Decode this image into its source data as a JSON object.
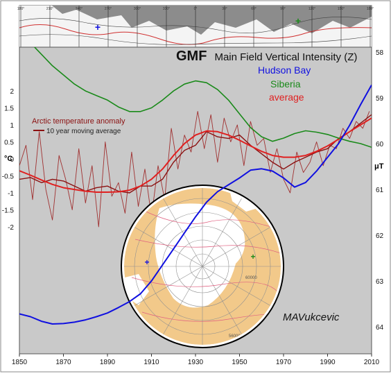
{
  "chart_data": {
    "type": "line",
    "title_bold": "GMF",
    "title_rest": "Main Field Vertical Intensity (Z)",
    "legend": [
      {
        "label": "Hudson Bay",
        "color": "#1010e0"
      },
      {
        "label": "Siberia",
        "color": "#1a8a1a"
      },
      {
        "label": "average",
        "color": "#e02020"
      }
    ],
    "temp_legend": {
      "title": "Arctic temperature anomaly",
      "moving_avg": "10 year moving average",
      "color": "#8b1010"
    },
    "signature": "MAVukcevic",
    "x_axis": {
      "ticks": [
        "1850",
        "1870",
        "1890",
        "1910",
        "1930",
        "1950",
        "1970",
        "1990",
        "2010"
      ],
      "range": [
        1850,
        2010
      ]
    },
    "y_left": {
      "unit": "°C",
      "ticks": [
        "2",
        "1.5",
        "1",
        "0.5",
        "0",
        "-0.5",
        "-1",
        "-1.5",
        "-2"
      ],
      "range": [
        -2.6,
        2.0
      ]
    },
    "y_right": {
      "unit": "μT",
      "ticks": [
        "58",
        "59",
        "60",
        "61",
        "62",
        "63",
        "64"
      ],
      "range": [
        57.55,
        64.3
      ]
    },
    "top_map_labels": [
      "180°",
      "210°",
      "240°",
      "270°",
      "300°",
      "330°",
      "0°",
      "30°",
      "60°",
      "90°",
      "120°",
      "150°",
      "180°"
    ],
    "inset_labels": [
      "60000",
      "56000"
    ],
    "series": [
      {
        "name": "Hudson Bay",
        "axis": "right",
        "color": "#1010e0",
        "x": [
          1850,
          1855,
          1860,
          1865,
          1870,
          1875,
          1880,
          1885,
          1890,
          1895,
          1900,
          1905,
          1910,
          1915,
          1920,
          1925,
          1930,
          1935,
          1940,
          1945,
          1950,
          1955,
          1960,
          1965,
          1970,
          1975,
          1980,
          1985,
          1990,
          1995,
          2000,
          2005,
          2010
        ],
        "y": [
          63.72,
          63.78,
          63.88,
          63.94,
          63.93,
          63.9,
          63.85,
          63.78,
          63.7,
          63.58,
          63.45,
          63.28,
          63.0,
          62.65,
          62.3,
          61.95,
          61.6,
          61.28,
          61.05,
          60.9,
          60.75,
          60.58,
          60.55,
          60.6,
          60.75,
          60.95,
          60.85,
          60.6,
          60.3,
          60.0,
          59.6,
          59.15,
          58.72
        ]
      },
      {
        "name": "Siberia",
        "axis": "right",
        "color": "#1a8a1a",
        "x": [
          1850,
          1855,
          1860,
          1865,
          1870,
          1875,
          1880,
          1885,
          1890,
          1895,
          1900,
          1905,
          1910,
          1915,
          1920,
          1925,
          1930,
          1935,
          1940,
          1945,
          1950,
          1955,
          1960,
          1965,
          1970,
          1975,
          1980,
          1985,
          1990,
          1995,
          2000,
          2005,
          2010
        ],
        "y": [
          57.6,
          57.8,
          58.05,
          58.3,
          58.5,
          58.7,
          58.85,
          58.95,
          59.05,
          59.2,
          59.3,
          59.3,
          59.22,
          59.05,
          58.85,
          58.7,
          58.63,
          58.67,
          58.82,
          59.05,
          59.35,
          59.65,
          59.85,
          59.95,
          59.88,
          59.78,
          59.72,
          59.75,
          59.8,
          59.88,
          59.95,
          60.0,
          60.08
        ]
      },
      {
        "name": "average",
        "axis": "left",
        "color": "#e02020",
        "x": [
          1850,
          1855,
          1860,
          1865,
          1870,
          1875,
          1880,
          1885,
          1890,
          1895,
          1900,
          1905,
          1910,
          1915,
          1920,
          1925,
          1930,
          1935,
          1940,
          1945,
          1950,
          1955,
          1960,
          1965,
          1970,
          1975,
          1980,
          1985,
          1990,
          1995,
          2000,
          2005,
          2010
        ],
        "y": [
          -0.35,
          -0.48,
          -0.62,
          -0.75,
          -0.85,
          -0.9,
          -0.95,
          -0.98,
          -0.98,
          -0.97,
          -0.92,
          -0.8,
          -0.6,
          -0.3,
          0.1,
          0.45,
          0.7,
          0.82,
          0.8,
          0.7,
          0.55,
          0.38,
          0.22,
          0.1,
          0.05,
          0.05,
          0.1,
          0.22,
          0.38,
          0.58,
          0.8,
          1.0,
          1.2
        ]
      },
      {
        "name": "10 year moving average",
        "axis": "left",
        "color": "#8b1010",
        "x": [
          1850,
          1855,
          1860,
          1865,
          1870,
          1875,
          1880,
          1885,
          1890,
          1895,
          1900,
          1905,
          1910,
          1915,
          1920,
          1925,
          1930,
          1935,
          1940,
          1945,
          1950,
          1955,
          1960,
          1965,
          1970,
          1975,
          1980,
          1985,
          1990,
          1995,
          2000,
          2005,
          2010
        ],
        "y": [
          -0.6,
          -0.55,
          -0.7,
          -0.6,
          -0.65,
          -0.8,
          -0.95,
          -0.85,
          -0.8,
          -0.95,
          -1.0,
          -0.8,
          -0.8,
          -0.6,
          -0.1,
          0.25,
          0.4,
          0.8,
          0.65,
          0.6,
          0.7,
          0.4,
          0.15,
          -0.1,
          -0.3,
          -0.1,
          0.05,
          0.2,
          0.3,
          0.6,
          0.8,
          1.05,
          1.3
        ]
      },
      {
        "name": "Arctic temperature anomaly",
        "axis": "left",
        "color": "#a03030",
        "x": [
          1850,
          1853,
          1856,
          1859,
          1862,
          1865,
          1868,
          1871,
          1874,
          1877,
          1880,
          1883,
          1886,
          1889,
          1892,
          1895,
          1898,
          1901,
          1904,
          1907,
          1910,
          1913,
          1916,
          1919,
          1922,
          1925,
          1928,
          1931,
          1934,
          1937,
          1940,
          1943,
          1946,
          1949,
          1952,
          1955,
          1958,
          1961,
          1964,
          1967,
          1970,
          1973,
          1976,
          1979,
          1982,
          1985,
          1988,
          1991,
          1994,
          1997,
          2000,
          2003,
          2006,
          2009
        ],
        "y": [
          -0.2,
          0.4,
          -1.2,
          0.8,
          -0.9,
          -1.8,
          0.1,
          -0.6,
          -1.5,
          0.3,
          -1.3,
          -0.2,
          -2.0,
          0.5,
          -1.1,
          -0.7,
          -1.6,
          0.2,
          -1.4,
          -0.3,
          -1.7,
          -0.2,
          -1.2,
          0.9,
          -0.3,
          0.7,
          0.2,
          1.4,
          0.3,
          1.3,
          -0.1,
          1.2,
          0.5,
          1.0,
          -0.2,
          1.1,
          0.4,
          0.6,
          -0.4,
          0.3,
          -0.6,
          -1.0,
          0.2,
          -0.4,
          -0.1,
          0.5,
          -0.2,
          0.4,
          0.3,
          0.9,
          0.6,
          1.1,
          0.9,
          1.4
        ]
      }
    ]
  }
}
